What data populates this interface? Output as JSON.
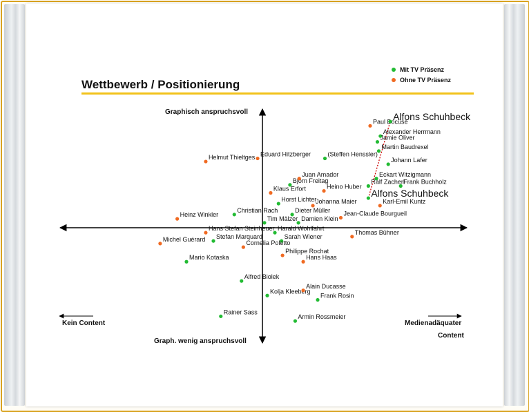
{
  "title": "Wettbewerb / Positionierung",
  "legend": [
    {
      "label": "Mit TV Präsenz",
      "color": "#22bb33"
    },
    {
      "label": "Ohne TV Präsenz",
      "color": "#f06a22"
    }
  ],
  "axes": {
    "top": "Graphisch anspruchsvoll",
    "bottom": "Graph. wenig anspruchsvoll",
    "left": "Kein Content",
    "right_line1": "Medienadäquater",
    "right_line2": "Content"
  },
  "chart_data": {
    "type": "scatter",
    "title": "Wettbewerb / Positionierung",
    "xlabel": "Kein Content → Medienadäquater Content",
    "ylabel": "Graph. wenig anspruchsvoll → Graphisch anspruchsvoll",
    "xlim": [
      -1,
      1
    ],
    "ylim": [
      -1,
      1
    ],
    "grid": false,
    "legend": "top-right",
    "series": [
      {
        "name": "Mit TV Präsenz",
        "color": "#22bb33",
        "points": [
          {
            "label": "Alexander Herrmann",
            "x": 0.587,
            "y": 0.742
          },
          {
            "label": "Jamie Oliver",
            "x": 0.572,
            "y": 0.695
          },
          {
            "label": "Martin Baudrexel",
            "x": 0.579,
            "y": 0.621
          },
          {
            "label": "(Steffen Henssler)",
            "x": 0.311,
            "y": 0.561
          },
          {
            "label": "Johann Lafer",
            "x": 0.626,
            "y": 0.514
          },
          {
            "label": "Eckart Witzigmann",
            "x": 0.567,
            "y": 0.398
          },
          {
            "label": "Ralf Zacherl",
            "x": 0.527,
            "y": 0.338
          },
          {
            "label": "Frank Buchholz",
            "x": 0.688,
            "y": 0.338
          },
          {
            "label": "Björn Freitag",
            "x": 0.137,
            "y": 0.347
          },
          {
            "label": "Alfons Schuhbeck",
            "x": 0.527,
            "y": 0.24,
            "big": true
          },
          {
            "label": "Horst Lichter",
            "x": 0.08,
            "y": 0.195
          },
          {
            "label": "Christian Rach",
            "x": -0.14,
            "y": 0.107
          },
          {
            "label": "Dieter Müller",
            "x": 0.148,
            "y": 0.107
          },
          {
            "label": "Tim Mälzer",
            "x": 0.01,
            "y": 0.04
          },
          {
            "label": "Damien Klein",
            "x": 0.179,
            "y": 0.04
          },
          {
            "label": "Harald Wohlfahrt",
            "x": 0.062,
            "y": -0.04
          },
          {
            "label": "Stefan Marquard",
            "x": -0.244,
            "y": -0.107
          },
          {
            "label": "Sarah Wiener",
            "x": 0.095,
            "y": -0.107
          },
          {
            "label": "Mario Kotaska",
            "x": -0.378,
            "y": -0.275
          },
          {
            "label": "Alfred Biolek",
            "x": -0.104,
            "y": -0.431
          },
          {
            "label": "Kolja Kleeberg",
            "x": 0.024,
            "y": -0.549
          },
          {
            "label": "Frank Rosin",
            "x": 0.275,
            "y": -0.584
          },
          {
            "label": "Rainer Sass",
            "x": -0.207,
            "y": -0.717
          },
          {
            "label": "Armin Rossmeier",
            "x": 0.163,
            "y": -0.755
          }
        ]
      },
      {
        "name": "Ohne TV Präsenz",
        "color": "#f06a22",
        "points": [
          {
            "label": "Paul Bocuse",
            "x": 0.536,
            "y": 0.825
          },
          {
            "label": "Eduard Hitzberger",
            "x": -0.024,
            "y": 0.561
          },
          {
            "label": "Helmut Thieltges",
            "x": -0.282,
            "y": 0.536
          },
          {
            "label": "Juan Amador",
            "x": 0.183,
            "y": 0.398
          },
          {
            "label": "Heino Huber",
            "x": 0.306,
            "y": 0.298
          },
          {
            "label": "Klaus Erfort",
            "x": 0.041,
            "y": 0.282
          },
          {
            "label": "Johanna Maier",
            "x": 0.251,
            "y": 0.179
          },
          {
            "label": "Karl-Emil Kuntz",
            "x": 0.585,
            "y": 0.179
          },
          {
            "label": "Jean-Claude Bourgueil",
            "x": 0.39,
            "y": 0.081
          },
          {
            "label": "Heinz Winkler",
            "x": -0.424,
            "y": 0.072
          },
          {
            "label": "Hans Stefan Steinheuer",
            "x": -0.282,
            "y": -0.04
          },
          {
            "label": "Thomas Bühner",
            "x": 0.446,
            "y": -0.072
          },
          {
            "label": "Michel Guérard",
            "x": -0.509,
            "y": -0.128
          },
          {
            "label": "Cornelia Poletto",
            "x": -0.095,
            "y": -0.157
          },
          {
            "label": "Philippe Rochat",
            "x": 0.1,
            "y": -0.224
          },
          {
            "label": "Hans Haas",
            "x": 0.203,
            "y": -0.275
          },
          {
            "label": "Alain Ducasse",
            "x": 0.203,
            "y": -0.507
          }
        ]
      },
      {
        "name": "",
        "color": "#22bb33",
        "points": [
          {
            "label": "Alfons Schuhbeck",
            "x": 0.636,
            "y": 0.86,
            "big": true
          }
        ]
      }
    ],
    "annotations": [
      {
        "type": "dotted-arrow",
        "from": [
          0.527,
          0.24
        ],
        "to": [
          0.636,
          0.86
        ],
        "color": "#cc0000"
      }
    ]
  }
}
